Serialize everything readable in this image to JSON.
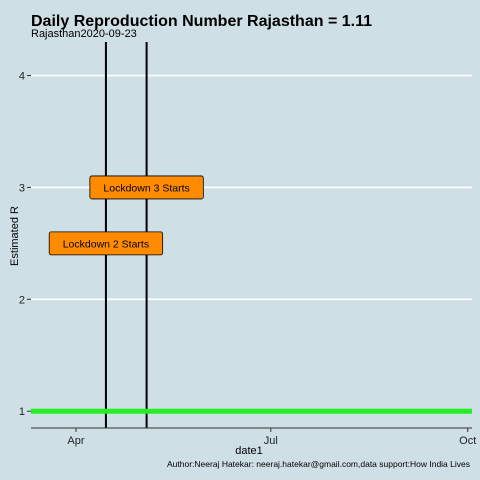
{
  "chart_data": {
    "type": "line",
    "title": "Daily Reproduction Number Rajasthan = 1.11",
    "subtitle": "Rajasthan2020-09-23",
    "xlabel": "date1",
    "ylabel": "Estimated R",
    "caption": "Author:Neeraj Hatekar: neeraj.hatekar@gmail.com,data support:How India Lives",
    "xlim": [
      "2020-03-11",
      "2020-10-03"
    ],
    "ylim": [
      0.85,
      4.3
    ],
    "x_ticks": [
      {
        "date": "2020-04-01",
        "label": "Apr"
      },
      {
        "date": "2020-07-01",
        "label": "Jul"
      },
      {
        "date": "2020-10-01",
        "label": "Oct"
      }
    ],
    "y_ticks": [
      1,
      2,
      3,
      4
    ],
    "grid": "horizontal",
    "reference_line": {
      "y": 1,
      "color": "#22ee22"
    },
    "vlines": [
      {
        "date": "2020-04-15",
        "color": "#000000"
      },
      {
        "date": "2020-05-04",
        "color": "#000000"
      }
    ],
    "annotations": [
      {
        "label": "Lockdown 2 Starts",
        "date": "2020-04-15",
        "y": 2.5,
        "fill": "#ff8c00"
      },
      {
        "label": "Lockdown 3 Starts",
        "date": "2020-05-04",
        "y": 3.0,
        "fill": "#ff8c00"
      }
    ],
    "colors": {
      "background": "#cfdfe6",
      "grid": "#ffffff"
    }
  }
}
